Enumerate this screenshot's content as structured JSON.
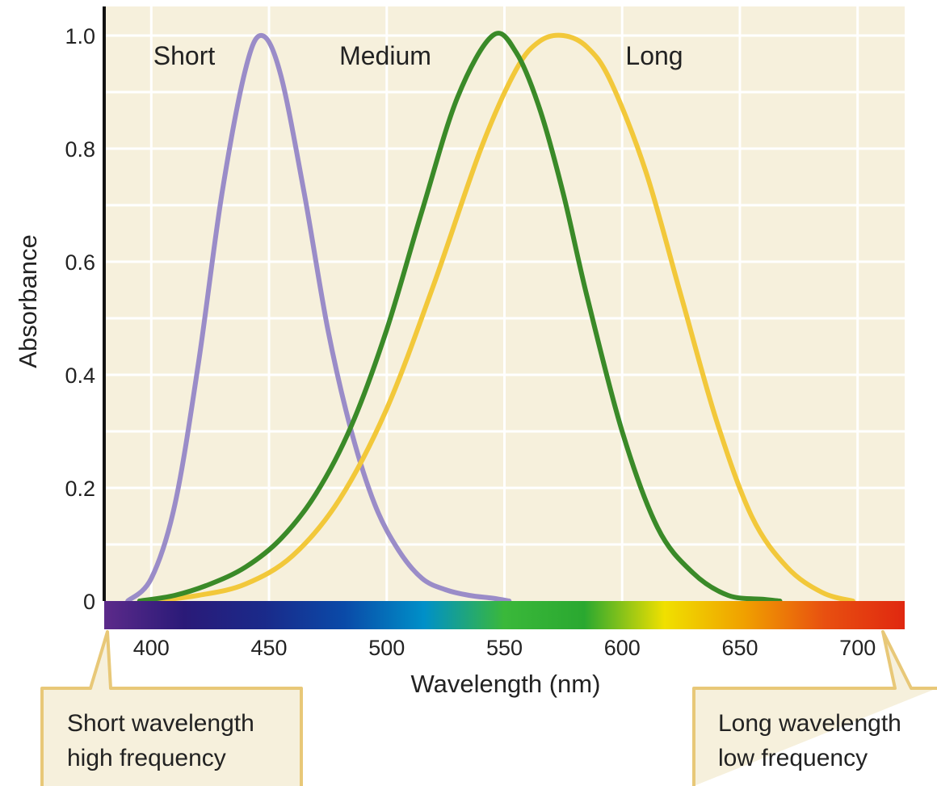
{
  "colors": {
    "plot_bg": "#f6f0dc",
    "grid": "#ffffff",
    "axis": "#111111",
    "callout_fill": "#f6f0dc",
    "callout_stroke": "#e8c878",
    "spectrum": [
      "#5c2a8a",
      "#2a1a78",
      "#1a2a8a",
      "#0a4aa8",
      "#0090c8",
      "#3ab83a",
      "#2aa830",
      "#f0e000",
      "#f0a000",
      "#e85010",
      "#e02810"
    ]
  },
  "chart_data": {
    "type": "line",
    "xlabel": "Wavelength (nm)",
    "ylabel": "Absorbance",
    "xlim": [
      380,
      720
    ],
    "ylim": [
      0,
      1.0
    ],
    "x_ticks": [
      "400",
      "450",
      "500",
      "550",
      "600",
      "650",
      "700"
    ],
    "y_ticks": [
      "1.0",
      "0.8",
      "0.6",
      "0.4",
      "0.2",
      "0"
    ],
    "grid": true,
    "series": [
      {
        "name": "Short",
        "color": "#9a8cc8",
        "x": [
          390,
          400,
          410,
          420,
          430,
          440,
          447,
          455,
          465,
          475,
          485,
          495,
          505,
          515,
          525,
          535,
          545,
          552
        ],
        "y": [
          0.0,
          0.04,
          0.17,
          0.42,
          0.72,
          0.94,
          1.0,
          0.93,
          0.72,
          0.48,
          0.3,
          0.17,
          0.09,
          0.04,
          0.02,
          0.01,
          0.005,
          0.0
        ]
      },
      {
        "name": "Medium",
        "color": "#3a8a28",
        "x": [
          395,
          410,
          425,
          440,
          455,
          470,
          485,
          500,
          515,
          530,
          545,
          555,
          565,
          575,
          585,
          600,
          615,
          630,
          645,
          660,
          667
        ],
        "y": [
          0.0,
          0.01,
          0.03,
          0.06,
          0.11,
          0.19,
          0.31,
          0.48,
          0.69,
          0.89,
          1.0,
          0.97,
          0.87,
          0.72,
          0.54,
          0.3,
          0.13,
          0.05,
          0.01,
          0.003,
          0.0
        ]
      },
      {
        "name": "Long",
        "color": "#f2c83a",
        "x": [
          400,
          420,
          440,
          460,
          480,
          500,
          520,
          540,
          555,
          565,
          575,
          585,
          595,
          610,
          625,
          640,
          655,
          670,
          685,
          698
        ],
        "y": [
          0.0,
          0.01,
          0.03,
          0.08,
          0.18,
          0.34,
          0.56,
          0.8,
          0.94,
          0.99,
          1.0,
          0.98,
          0.92,
          0.76,
          0.54,
          0.32,
          0.15,
          0.06,
          0.015,
          0.0
        ]
      }
    ],
    "annotations": {
      "short_side": [
        "Short wavelength",
        "high frequency"
      ],
      "long_side": [
        "Long wavelength",
        "low frequency"
      ]
    }
  }
}
